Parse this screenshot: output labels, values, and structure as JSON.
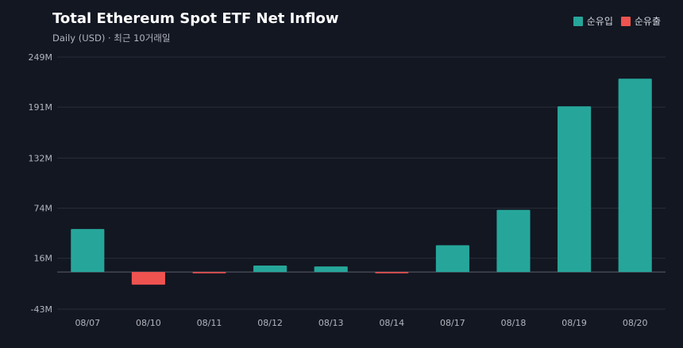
{
  "colors": {
    "inflow": "#26a69a",
    "outflow": "#ef5350",
    "grid": "#2a2e39",
    "zero": "#5d606b"
  },
  "chart_data": {
    "type": "bar",
    "title": "Total Ethereum Spot ETF Net Inflow",
    "subtitle": "Daily (USD) · 최근 10거래일",
    "legend": [
      {
        "label": "순유입",
        "color": "#26a69a"
      },
      {
        "label": "순유출",
        "color": "#ef5350"
      }
    ],
    "legend_position": "top-right",
    "categories": [
      "08/07",
      "08/10",
      "08/11",
      "08/12",
      "08/13",
      "08/14",
      "08/17",
      "08/18",
      "08/19",
      "08/20"
    ],
    "values": [
      49.9,
      -14.6,
      -1.5,
      7.5,
      6.5,
      -1.5,
      31,
      72,
      192,
      224
    ],
    "yticks": [
      "249M",
      "191M",
      "132M",
      "74M",
      "16M",
      "-43M"
    ],
    "ytick_values": [
      249,
      191,
      132,
      74,
      16,
      -43
    ],
    "ylim": [
      -43,
      249
    ],
    "grid": true,
    "xlabel": "",
    "ylabel": ""
  }
}
